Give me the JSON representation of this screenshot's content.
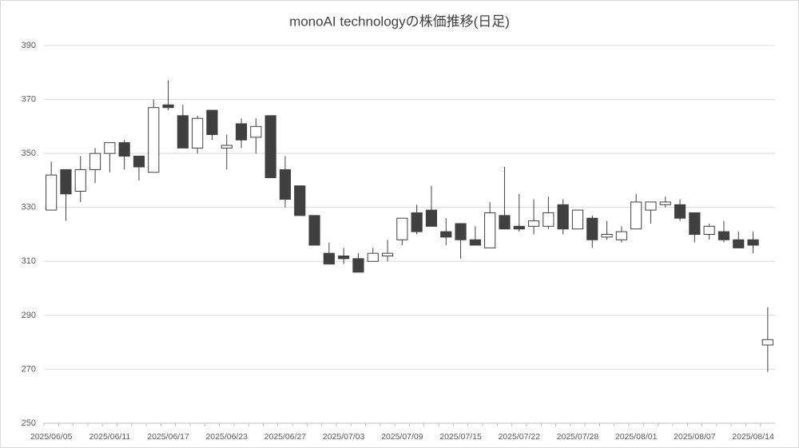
{
  "chart_data": {
    "type": "candlestick",
    "title": "monoAI technologyの株価推移(日足)",
    "categories": [
      "2025/06/05",
      null,
      null,
      null,
      "2025/06/11",
      null,
      null,
      null,
      "2025/06/17",
      null,
      null,
      null,
      "2025/06/23",
      null,
      null,
      null,
      "2025/06/27",
      null,
      null,
      null,
      "2025/07/03",
      null,
      null,
      null,
      "2025/07/09",
      null,
      null,
      null,
      "2025/07/15",
      null,
      null,
      null,
      "2025/07/22",
      null,
      null,
      null,
      "2025/07/28",
      null,
      null,
      null,
      "2025/08/01",
      null,
      null,
      null,
      "2025/08/07",
      null,
      null,
      null,
      "2025/08/14",
      null
    ],
    "open": [
      329,
      344,
      336,
      344,
      350,
      354,
      349,
      343,
      368,
      364,
      352,
      366,
      352,
      361,
      356,
      364,
      344,
      338,
      327,
      313,
      312,
      311,
      310,
      312,
      318,
      328,
      329,
      321,
      324,
      318,
      315,
      327,
      323,
      323,
      323,
      331,
      322,
      326,
      319,
      318,
      322,
      329,
      331,
      331,
      328,
      320,
      321,
      318,
      318,
      279
    ],
    "high": [
      347,
      344,
      349,
      352,
      354,
      355,
      349,
      370,
      377,
      368,
      364,
      366,
      357,
      363,
      363,
      364,
      349,
      338,
      327,
      317,
      315,
      313,
      315,
      318,
      326,
      331,
      338,
      326,
      324,
      323,
      332,
      345,
      335,
      333,
      334,
      333,
      329,
      327,
      325,
      323,
      335,
      332,
      334,
      333,
      328,
      324,
      325,
      321,
      321,
      293
    ],
    "low": [
      329,
      325,
      332,
      339,
      343,
      344,
      340,
      343,
      366,
      352,
      350,
      355,
      344,
      352,
      350,
      341,
      330,
      327,
      316,
      309,
      309,
      306,
      310,
      310,
      316,
      320,
      323,
      316,
      311,
      316,
      315,
      322,
      321,
      320,
      322,
      320,
      322,
      315,
      318,
      317,
      322,
      324,
      330,
      325,
      317,
      318,
      317,
      315,
      313,
      269
    ],
    "close": [
      342,
      335,
      344,
      350,
      354,
      349,
      345,
      367,
      367,
      352,
      363,
      357,
      353,
      355,
      360,
      341,
      333,
      327,
      316,
      309,
      311,
      306,
      313,
      313,
      326,
      321,
      323,
      319,
      318,
      316,
      328,
      322,
      322,
      325,
      328,
      322,
      329,
      318,
      320,
      321,
      332,
      332,
      332,
      326,
      320,
      323,
      318,
      315,
      316,
      281
    ],
    "up_color": "#ffffff",
    "down_color": "#404040",
    "edge_color": "#404040",
    "ylim": [
      250,
      390
    ],
    "yticks": [
      250,
      270,
      290,
      310,
      330,
      350,
      370,
      390
    ],
    "grid": true
  }
}
